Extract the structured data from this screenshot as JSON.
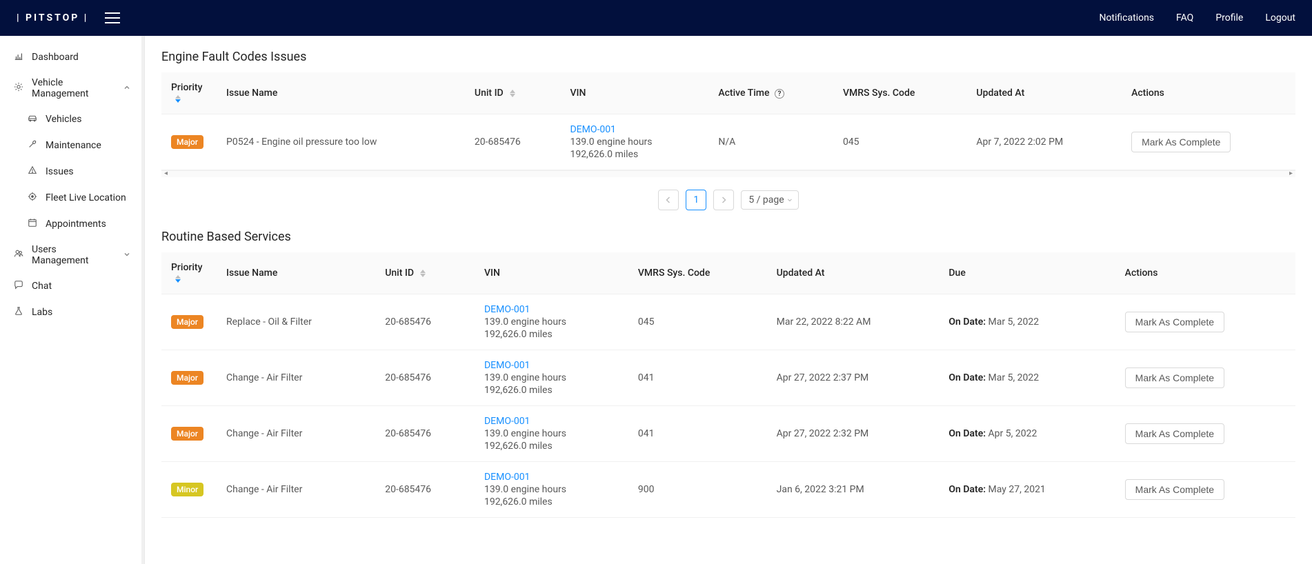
{
  "brand": "| PITSTOP |",
  "topnav": {
    "notifications": "Notifications",
    "faq": "FAQ",
    "profile": "Profile",
    "logout": "Logout"
  },
  "sidebar": {
    "dashboard": "Dashboard",
    "vehicle_mgmt": "Vehicle Management",
    "vehicles": "Vehicles",
    "maintenance": "Maintenance",
    "issues": "Issues",
    "fleet": "Fleet Live Location",
    "appointments": "Appointments",
    "users_mgmt": "Users Management",
    "chat": "Chat",
    "labs": "Labs"
  },
  "section1": {
    "title": "Engine Fault Codes Issues",
    "cols": {
      "priority": "Priority",
      "issue": "Issue Name",
      "unit": "Unit ID",
      "vin": "VIN",
      "active": "Active Time",
      "vmrs": "VMRS Sys. Code",
      "updated": "Updated At",
      "actions": "Actions"
    },
    "row": {
      "priority": "Major",
      "issue": "P0524 - Engine oil pressure too low",
      "unit": "20-685476",
      "vin": "DEMO-001",
      "vin_l2": "139.0 engine hours",
      "vin_l3": "192,626.0 miles",
      "active": "N/A",
      "vmrs": "045",
      "updated": "Apr 7, 2022 2:02 PM",
      "action": "Mark As Complete"
    }
  },
  "pagination": {
    "page": "1",
    "size": "5 / page"
  },
  "section2": {
    "title": "Routine Based Services",
    "cols": {
      "priority": "Priority",
      "issue": "Issue Name",
      "unit": "Unit ID",
      "vin": "VIN",
      "vmrs": "VMRS Sys. Code",
      "updated": "Updated At",
      "due": "Due",
      "actions": "Actions"
    },
    "due_label": "On Date:",
    "action": "Mark As Complete",
    "rows": [
      {
        "priority": "Major",
        "pclass": "major",
        "issue": "Replace - Oil & Filter",
        "unit": "20-685476",
        "vin": "DEMO-001",
        "vin_l2": "139.0 engine hours",
        "vin_l3": "192,626.0 miles",
        "vmrs": "045",
        "updated": "Mar 22, 2022 8:22 AM",
        "due": " Mar 5, 2022"
      },
      {
        "priority": "Major",
        "pclass": "major",
        "issue": "Change - Air Filter",
        "unit": "20-685476",
        "vin": "DEMO-001",
        "vin_l2": "139.0 engine hours",
        "vin_l3": "192,626.0 miles",
        "vmrs": "041",
        "updated": "Apr 27, 2022 2:37 PM",
        "due": " Mar 5, 2022"
      },
      {
        "priority": "Major",
        "pclass": "major",
        "issue": "Change - Air Filter",
        "unit": "20-685476",
        "vin": "DEMO-001",
        "vin_l2": "139.0 engine hours",
        "vin_l3": "192,626.0 miles",
        "vmrs": "041",
        "updated": "Apr 27, 2022 2:32 PM",
        "due": " Apr 5, 2022"
      },
      {
        "priority": "Minor",
        "pclass": "minor",
        "issue": "Change - Air Filter",
        "unit": "20-685476",
        "vin": "DEMO-001",
        "vin_l2": "139.0 engine hours",
        "vin_l3": "192,626.0 miles",
        "vmrs": "900",
        "updated": "Jan 6, 2022 3:21 PM",
        "due": " May 27, 2021"
      }
    ]
  },
  "colors": {
    "topbar": "#02103d",
    "major": "#ec8523",
    "minor": "#d6c622",
    "link": "#1890ff",
    "active_sort": "#1890ff"
  }
}
